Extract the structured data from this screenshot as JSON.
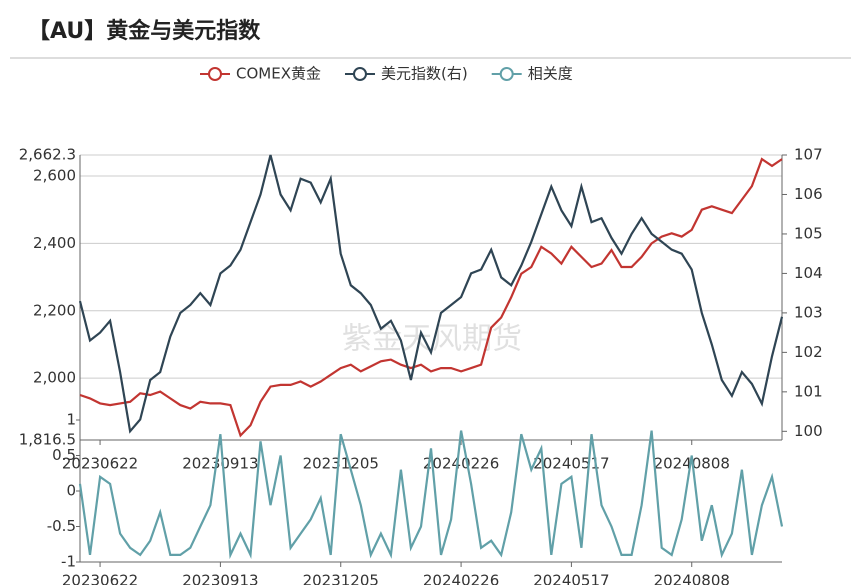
{
  "title": "【AU】黄金与美元指数",
  "watermark": "紫金天风期货",
  "chart_data": [
    {
      "type": "line",
      "categories": [
        null,
        null,
        "20230622",
        null,
        null,
        null,
        null,
        null,
        null,
        null,
        null,
        null,
        null,
        null,
        "20230913",
        null,
        null,
        null,
        null,
        null,
        null,
        null,
        null,
        null,
        null,
        null,
        "20231205",
        null,
        null,
        null,
        null,
        null,
        null,
        null,
        null,
        null,
        null,
        null,
        "20240226",
        null,
        null,
        null,
        null,
        null,
        null,
        null,
        null,
        null,
        null,
        "20240517",
        null,
        null,
        null,
        null,
        null,
        null,
        null,
        null,
        null,
        null,
        null,
        "20240808",
        null,
        null,
        null,
        null,
        null,
        null,
        null,
        null,
        null
      ],
      "series": [
        {
          "name": "COMEX黄金",
          "color": "#c23531",
          "values": [
            1950,
            1940,
            1925,
            1920,
            1925,
            1930,
            1955,
            1950,
            1960,
            1940,
            1920,
            1910,
            1930,
            1925,
            1925,
            1920,
            1830,
            1860,
            1930,
            1975,
            1980,
            1980,
            1990,
            1975,
            1990,
            2010,
            2030,
            2040,
            2020,
            2035,
            2050,
            2055,
            2040,
            2030,
            2040,
            2020,
            2030,
            2030,
            2020,
            2030,
            2040,
            2150,
            2180,
            2240,
            2310,
            2330,
            2390,
            2370,
            2340,
            2390,
            2360,
            2330,
            2340,
            2380,
            2330,
            2330,
            2360,
            2400,
            2420,
            2430,
            2420,
            2440,
            2500,
            2510,
            2500,
            2490,
            2530,
            2570,
            2650,
            2630,
            2650
          ]
        },
        {
          "name": "美元指数(右)",
          "color": "#2f4554",
          "axis": "y2",
          "values": [
            103.3,
            102.3,
            102.5,
            102.8,
            101.5,
            100.0,
            100.3,
            101.3,
            101.5,
            102.4,
            103.0,
            103.2,
            103.5,
            103.2,
            104.0,
            104.2,
            104.6,
            105.3,
            106.0,
            107.0,
            106.0,
            105.6,
            106.4,
            106.3,
            105.8,
            106.4,
            104.5,
            103.7,
            103.5,
            103.2,
            102.6,
            102.8,
            102.3,
            101.3,
            102.5,
            102.0,
            103.0,
            103.2,
            103.4,
            104.0,
            104.1,
            104.6,
            103.9,
            103.7,
            104.2,
            104.8,
            105.5,
            106.2,
            105.6,
            105.2,
            106.2,
            105.3,
            105.4,
            104.9,
            104.5,
            105.0,
            105.4,
            105.0,
            104.8,
            104.6,
            104.5,
            104.1,
            103.0,
            102.2,
            101.3,
            100.9,
            101.5,
            101.2,
            100.7,
            101.9,
            102.9
          ]
        }
      ],
      "ylim": [
        1816.5,
        2662.3
      ],
      "yticks": [
        {
          "value": 1816.5,
          "label": "1,816.5"
        },
        {
          "value": 2000,
          "label": "2,000"
        },
        {
          "value": 2200,
          "label": "2,200"
        },
        {
          "value": 2400,
          "label": "2,400"
        },
        {
          "value": 2600,
          "label": "2,600"
        },
        {
          "value": 2662.3,
          "label": "2,662.3"
        }
      ],
      "y2lim": [
        99.78,
        107
      ],
      "y2ticks": [
        100,
        101,
        102,
        103,
        104,
        105,
        106,
        107
      ],
      "grid": true
    },
    {
      "type": "line",
      "categories": [
        null,
        null,
        "20230622",
        null,
        null,
        null,
        null,
        null,
        null,
        null,
        null,
        null,
        null,
        null,
        "20230913",
        null,
        null,
        null,
        null,
        null,
        null,
        null,
        null,
        null,
        null,
        null,
        "20231205",
        null,
        null,
        null,
        null,
        null,
        null,
        null,
        null,
        null,
        null,
        null,
        "20240226",
        null,
        null,
        null,
        null,
        null,
        null,
        null,
        null,
        null,
        null,
        "20240517",
        null,
        null,
        null,
        null,
        null,
        null,
        null,
        null,
        null,
        null,
        null,
        "20240808",
        null,
        null,
        null,
        null,
        null,
        null,
        null,
        null,
        null
      ],
      "series": [
        {
          "name": "相关度",
          "color": "#61a0a8",
          "values": [
            0.1,
            -0.9,
            0.2,
            0.1,
            -0.6,
            -0.8,
            -0.9,
            -0.7,
            -0.3,
            -0.9,
            -0.9,
            -0.8,
            -0.5,
            -0.2,
            0.8,
            -0.9,
            -0.6,
            -0.9,
            0.7,
            -0.2,
            0.5,
            -0.8,
            -0.6,
            -0.4,
            -0.1,
            -0.9,
            0.8,
            0.3,
            -0.2,
            -0.9,
            -0.6,
            -0.9,
            0.3,
            -0.8,
            -0.5,
            0.6,
            -0.9,
            -0.4,
            0.85,
            0.1,
            -0.8,
            -0.7,
            -0.9,
            -0.3,
            0.8,
            0.3,
            0.6,
            -0.9,
            0.1,
            0.2,
            -0.8,
            0.8,
            -0.2,
            -0.5,
            -0.9,
            -0.9,
            -0.2,
            0.85,
            -0.8,
            -0.9,
            -0.4,
            0.5,
            -0.7,
            -0.2,
            -0.9,
            -0.6,
            0.3,
            -0.9,
            -0.2,
            0.2,
            -0.5
          ]
        }
      ],
      "ylim": [
        -1,
        1
      ],
      "yticks": [
        -1,
        -0.5,
        0,
        0.5,
        1
      ],
      "grid": false
    }
  ]
}
